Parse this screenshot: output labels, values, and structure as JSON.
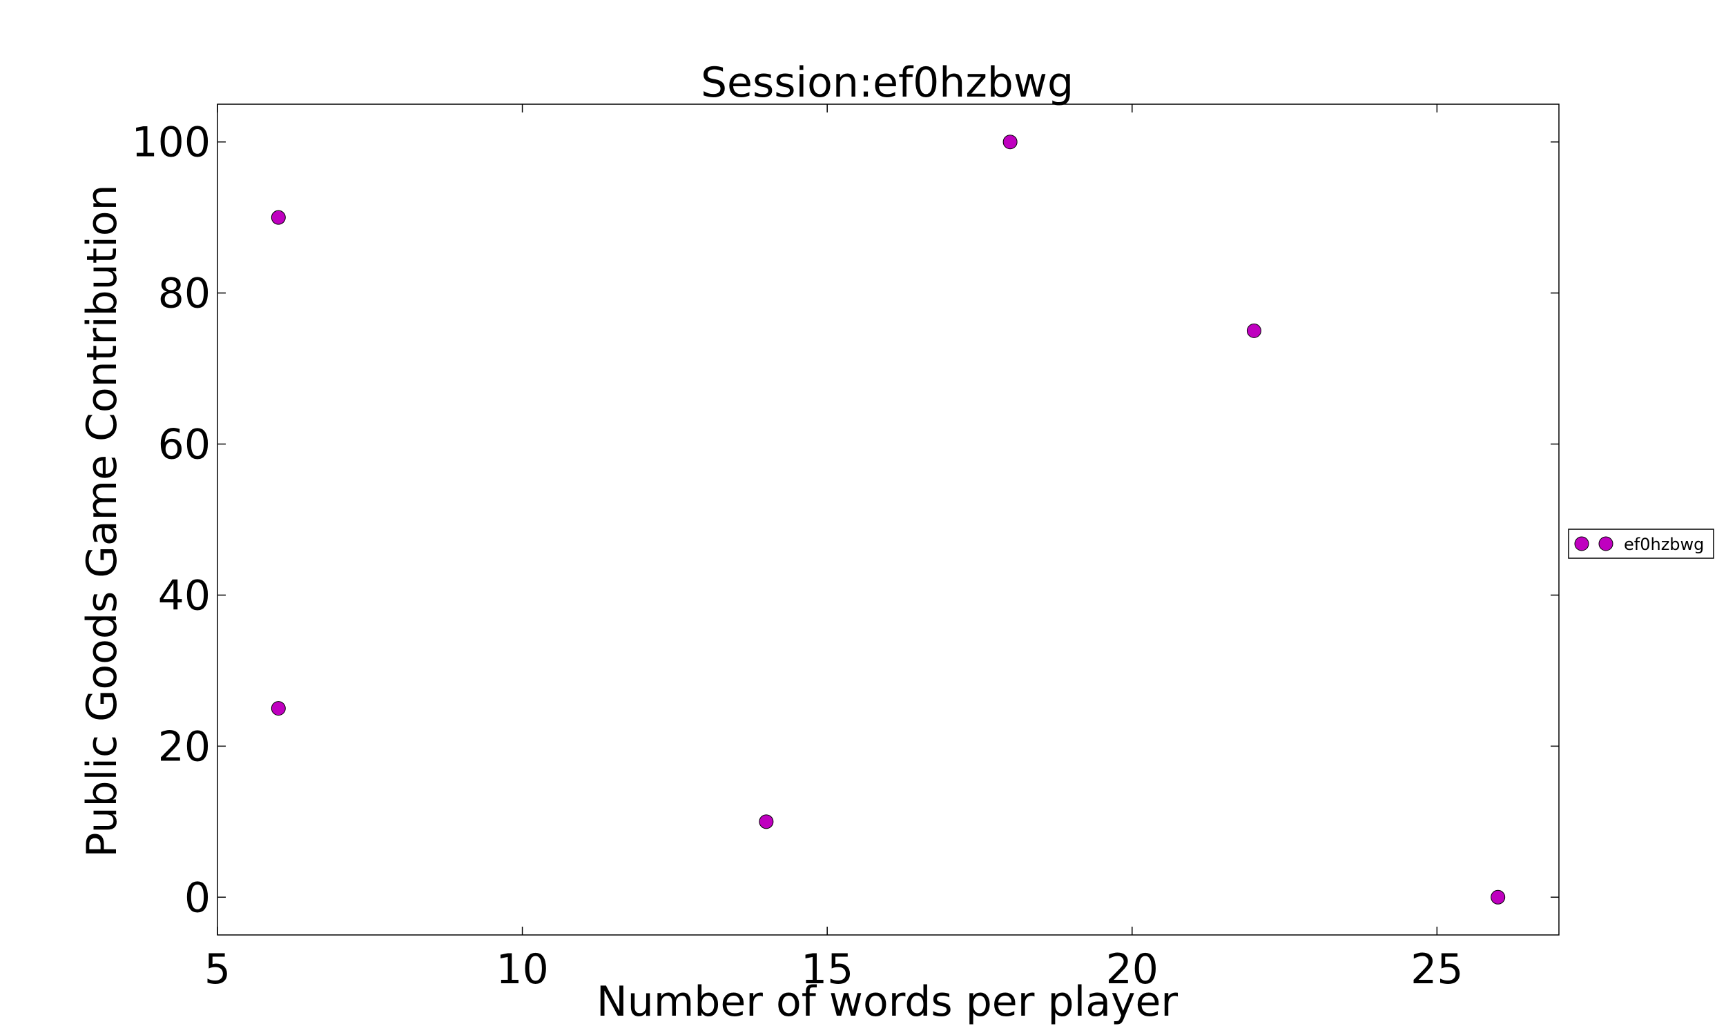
{
  "chart_data": {
    "type": "scatter",
    "title": "Session:ef0hzbwg",
    "xlabel": "Number of words per player",
    "ylabel": "Public Goods Game Contribution",
    "xlim": [
      5,
      27
    ],
    "ylim": [
      -5,
      105
    ],
    "xticks": [
      5,
      10,
      15,
      20,
      25
    ],
    "yticks": [
      0,
      20,
      40,
      60,
      80,
      100
    ],
    "grid": false,
    "legend_position": "right",
    "series": [
      {
        "name": "ef0hzbwg",
        "color": "#bf00bf",
        "points": [
          {
            "x": 6,
            "y": 90
          },
          {
            "x": 6,
            "y": 25
          },
          {
            "x": 14,
            "y": 10
          },
          {
            "x": 18,
            "y": 100
          },
          {
            "x": 22,
            "y": 75
          },
          {
            "x": 26,
            "y": 0
          }
        ]
      }
    ]
  }
}
